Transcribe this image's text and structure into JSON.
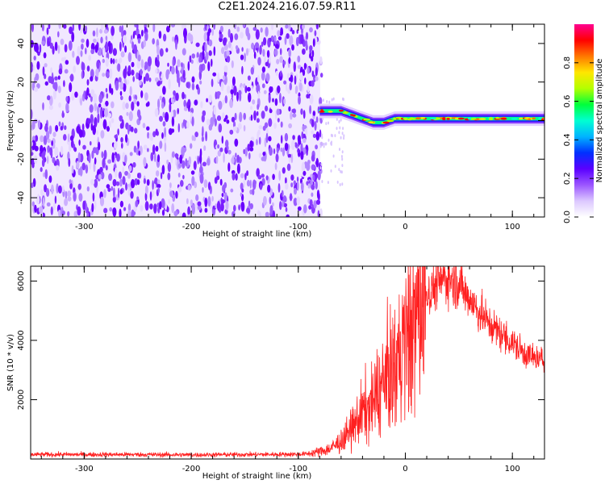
{
  "title": "C2E1.2024.216.07.59.R11",
  "chart_data": [
    {
      "type": "heatmap",
      "xlabel": "Height of straight line (km)",
      "ylabel": "Frequency (Hz)",
      "xlim": [
        -350,
        130
      ],
      "ylim": [
        -50,
        50
      ],
      "xticks": [
        -300,
        -200,
        -100,
        0,
        100
      ],
      "yticks": [
        -40,
        -20,
        0,
        20,
        40
      ],
      "colorbar": {
        "label": "Normalized spectral amplitude",
        "range": [
          0,
          1
        ],
        "ticks": [
          "0.0",
          "0.2",
          "0.4",
          "0.6",
          "0.8"
        ],
        "colors": [
          "#ffffff",
          "#dcc8ff",
          "#9b55ff",
          "#5a00ff",
          "#0030ff",
          "#00b4ff",
          "#00ffd2",
          "#00ff3c",
          "#b4ff00",
          "#ffe600",
          "#ff7800",
          "#ff0000",
          "#ff0090"
        ]
      },
      "noise_region_x": [
        -350,
        -75
      ],
      "signal_ridge": {
        "x": [
          -80,
          -60,
          -50,
          -40,
          -30,
          -20,
          -10,
          0,
          20,
          40,
          60,
          80,
          100,
          130
        ],
        "freq": [
          5,
          5,
          3,
          1,
          -1,
          -1,
          1,
          1,
          1,
          1,
          1,
          1,
          1,
          1
        ]
      }
    },
    {
      "type": "line",
      "xlabel": "Height of straight line (km)",
      "ylabel": "SNR (10 * v/v)",
      "xlim": [
        -350,
        130
      ],
      "ylim": [
        0,
        6500
      ],
      "xticks": [
        -300,
        -200,
        -100,
        0,
        100
      ],
      "yticks": [
        2000,
        4000,
        6000
      ],
      "color": "#ff2020",
      "series": [
        {
          "x": [
            -350,
            -300,
            -250,
            -200,
            -150,
            -100,
            -90,
            -80,
            -70,
            -60,
            -50,
            -40,
            -30,
            -20,
            -10,
            0,
            10,
            20,
            30,
            40,
            50,
            60,
            70,
            80,
            90,
            100,
            110,
            120,
            130
          ],
          "y": [
            150,
            150,
            150,
            140,
            150,
            160,
            180,
            250,
            350,
            600,
            1000,
            1600,
            1900,
            2500,
            3200,
            3900,
            4800,
            5500,
            5950,
            6100,
            5900,
            5400,
            4900,
            4500,
            4200,
            3900,
            3600,
            3400,
            3300
          ]
        }
      ]
    }
  ]
}
